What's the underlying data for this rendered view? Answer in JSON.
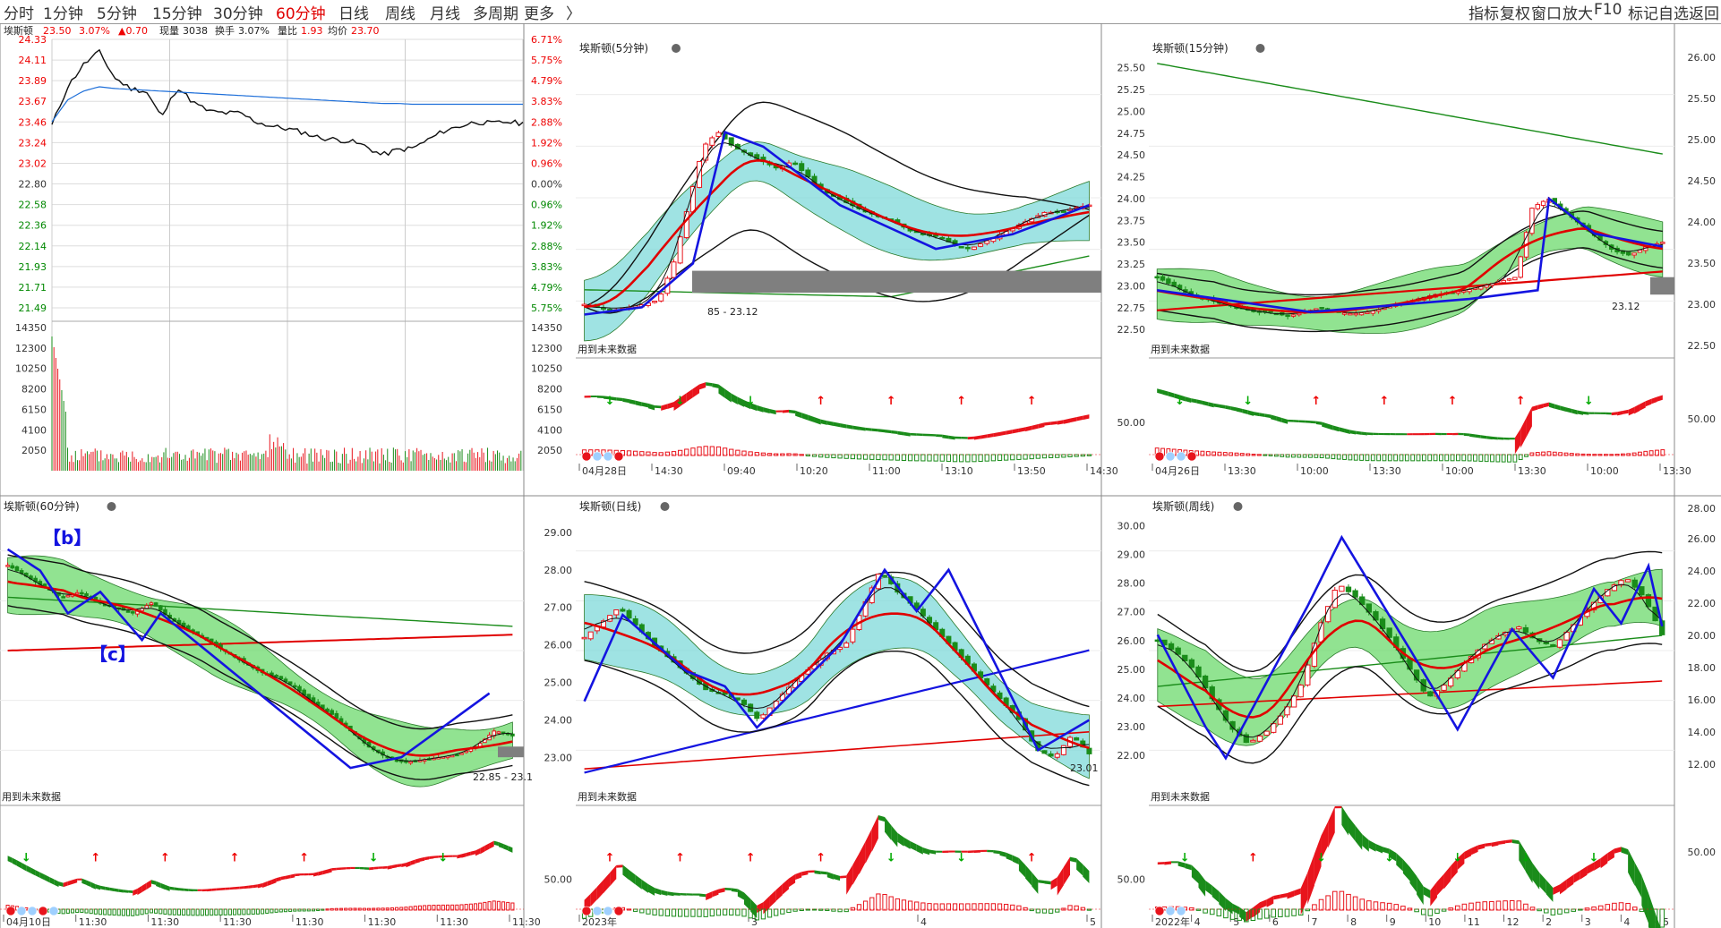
{
  "toolbar": {
    "periods": [
      "分时",
      "1分钟",
      "5分钟",
      "15分钟",
      "30分钟",
      "60分钟",
      "日线",
      "周线",
      "月线",
      "多周期",
      "更多"
    ],
    "active_period": "60分钟",
    "more_arrow": "〉",
    "right_tools": [
      "指标",
      "复权",
      "窗口",
      "放大",
      "F10",
      "标记",
      "自选",
      "返回"
    ]
  },
  "stock_name": "埃斯顿",
  "intraday": {
    "quote": {
      "price": "23.50",
      "pct": "3.07%",
      "change": "▲0.70",
      "vol_label": "现量",
      "vol": "3038",
      "turnover_label": "换手",
      "turnover": "3.07%",
      "ratio_label": "量比",
      "ratio": "1.93",
      "avg_label": "均价",
      "avg": "23.70"
    },
    "price_ticks": [
      "24.33",
      "24.11",
      "23.89",
      "23.67",
      "23.46",
      "23.24",
      "23.02",
      "22.80",
      "22.58",
      "22.36",
      "22.14",
      "21.93",
      "21.71",
      "21.49"
    ],
    "pct_ticks": [
      "6.71%",
      "5.75%",
      "4.79%",
      "3.83%",
      "2.88%",
      "1.92%",
      "0.96%",
      "0.00%",
      "0.96%",
      "1.92%",
      "2.88%",
      "3.83%",
      "4.79%",
      "5.75%"
    ],
    "volume_ticks": [
      "14350",
      "12300",
      "10250",
      "8200",
      "6150",
      "4100",
      "2050"
    ]
  },
  "chart_data": [
    {
      "type": "line",
      "title": "埃斯顿",
      "period": "分时",
      "y_ticks": [
        "24.33",
        "24.11",
        "23.89",
        "23.67",
        "23.46",
        "23.24",
        "23.02",
        "22.80",
        "22.58",
        "22.36",
        "22.14",
        "21.93",
        "21.71",
        "21.49"
      ],
      "ylim": [
        21.38,
        24.44
      ],
      "series": [
        {
          "values": [
            23.46,
            23.9,
            24.15,
            24.3,
            24.0,
            23.88,
            23.85,
            23.55,
            23.9,
            23.72,
            23.62,
            23.6,
            23.6,
            23.5,
            23.45,
            23.42,
            23.38,
            23.32,
            23.3,
            23.28,
            23.22,
            23.12,
            23.18,
            23.2,
            23.3,
            23.4,
            23.45,
            23.5,
            23.48,
            23.5,
            23.48
          ]
        },
        {
          "values": [
            23.5,
            23.75,
            23.85,
            23.9,
            23.88,
            23.87,
            23.86,
            23.85,
            23.84,
            23.83,
            23.82,
            23.81,
            23.8,
            23.79,
            23.78,
            23.77,
            23.76,
            23.75,
            23.74,
            23.73,
            23.72,
            23.71,
            23.71,
            23.7,
            23.7,
            23.7,
            23.7,
            23.7,
            23.7,
            23.7,
            23.7
          ]
        }
      ]
    },
    {
      "type": "candlestick",
      "title": "埃斯顿(5分钟)",
      "period": "5分钟",
      "range_label": "85 - 23.12",
      "note": "用到未来数据",
      "y_ticks": [],
      "x_ticks": [
        "04月28日",
        "14:30",
        "09:40",
        "10:20",
        "11:00",
        "13:10",
        "13:50",
        "14:30"
      ],
      "ylim": [
        22.6,
        24.5
      ],
      "indicator_ticks": [],
      "closes": [
        22.82,
        22.8,
        22.78,
        22.8,
        22.82,
        22.85,
        23.1,
        23.5,
        23.9,
        24.0,
        23.9,
        23.85,
        23.8,
        23.75,
        23.8,
        23.7,
        23.6,
        23.55,
        23.5,
        23.45,
        23.42,
        23.38,
        23.32,
        23.3,
        23.28,
        23.22,
        23.2,
        23.25,
        23.3,
        23.35,
        23.4,
        23.45,
        23.45,
        23.48,
        23.5
      ]
    },
    {
      "type": "candlestick",
      "title": "埃斯顿(15分钟)",
      "period": "15分钟",
      "range_label": "23.12",
      "note": "用到未来数据",
      "y_ticks": [
        "25.50",
        "25.25",
        "25.00",
        "24.75",
        "24.50",
        "24.25",
        "24.00",
        "23.75",
        "23.50",
        "23.25",
        "23.00",
        "22.75",
        "22.50"
      ],
      "x_ticks": [
        "04月26日",
        "13:30",
        "10:00",
        "13:30",
        "10:00",
        "13:30",
        "10:00",
        "13:30"
      ],
      "ylim": [
        22.42,
        25.6
      ],
      "indicator_ticks": [
        "50.00"
      ],
      "closes": [
        23.1,
        23.0,
        22.9,
        22.85,
        22.8,
        22.75,
        22.7,
        22.7,
        22.65,
        22.7,
        22.75,
        22.7,
        22.68,
        22.7,
        22.75,
        22.8,
        22.85,
        22.9,
        22.92,
        22.95,
        23.0,
        23.05,
        23.1,
        23.9,
        24.0,
        23.85,
        23.7,
        23.55,
        23.4,
        23.35,
        23.45,
        23.5
      ]
    },
    {
      "type": "candlestick",
      "title": "埃斯顿(60分钟)",
      "period": "60分钟",
      "labels": [
        "【b】",
        "【c】"
      ],
      "range_label": "22.85 - 23.1",
      "note": "用到未来数据",
      "y_ticks": [],
      "x_ticks": [
        "04月10日",
        "11:30",
        "11:30",
        "11:30",
        "11:30",
        "11:30",
        "11:30",
        "11:30"
      ],
      "ylim": [
        22.5,
        27.5
      ],
      "indicator_ticks": [],
      "closes": [
        26.6,
        26.4,
        26.2,
        26.0,
        26.1,
        25.9,
        25.8,
        25.7,
        25.9,
        25.6,
        25.4,
        25.2,
        25.0,
        24.8,
        24.6,
        24.5,
        24.3,
        24.0,
        23.8,
        23.5,
        23.2,
        23.0,
        22.9,
        22.95,
        23.0,
        23.05,
        23.2,
        23.5,
        23.4
      ]
    },
    {
      "type": "candlestick",
      "title": "埃斯顿(日线)",
      "period": "日线",
      "range_label": "23.01",
      "note": "用到未来数据",
      "y_ticks": [
        "29.00",
        "28.00",
        "27.00",
        "26.00",
        "25.00",
        "24.00",
        "23.00"
      ],
      "x_ticks": [
        "2023年",
        "3",
        "4",
        "5"
      ],
      "ylim": [
        22.3,
        29.4
      ],
      "indicator_ticks": [
        "50.00"
      ],
      "closes": [
        26.2,
        26.6,
        27.0,
        26.5,
        26.0,
        25.6,
        25.2,
        24.8,
        24.7,
        24.5,
        24.0,
        24.5,
        25.0,
        25.4,
        25.8,
        26.0,
        27.0,
        28.0,
        27.4,
        27.0,
        26.5,
        26.0,
        25.5,
        25.0,
        24.5,
        24.0,
        23.2,
        23.0,
        23.6,
        23.1
      ]
    },
    {
      "type": "candlestick",
      "title": "埃斯顿(周线)",
      "period": "周线",
      "note": "用到未来数据",
      "y_ticks": [
        "30.00",
        "29.00",
        "28.00",
        "27.00",
        "26.00",
        "25.00",
        "24.00",
        "23.00",
        "22.00"
      ],
      "x_ticks": [
        "2022年",
        "4",
        "5",
        "6",
        "7",
        "8",
        "9",
        "10",
        "11",
        "12",
        "2",
        "3",
        "4",
        "5"
      ],
      "ylim": [
        21.0,
        30.3
      ],
      "indicator_ticks": [
        "50.00"
      ],
      "closes": [
        26.0,
        25.6,
        25.0,
        24.0,
        23.0,
        22.4,
        22.8,
        23.5,
        24.5,
        26.5,
        28.0,
        27.5,
        26.8,
        26.0,
        25.0,
        24.0,
        24.5,
        25.2,
        25.8,
        26.2,
        26.5,
        26.0,
        25.8,
        26.5,
        27.2,
        27.8,
        28.2,
        27.5,
        26.2
      ]
    },
    {
      "type": "axis",
      "title": "right-axis",
      "y_ticks_top": [
        "26.00",
        "25.50",
        "25.00",
        "24.50",
        "24.00",
        "23.50",
        "23.00",
        "22.50",
        "50.00"
      ],
      "y_ticks_bottom": [
        "28.00",
        "26.00",
        "24.00",
        "22.00",
        "20.00",
        "18.00",
        "16.00",
        "14.00",
        "12.00",
        "50.00"
      ]
    }
  ],
  "colors": {
    "up": "#e8141c",
    "down": "#1a8c1a",
    "avg": "#1e6fd9",
    "wave": "#1414e0",
    "green_band": "#6cd96c",
    "cyan_band": "#7fd9d9",
    "grey_box": "#7f7f7f"
  }
}
